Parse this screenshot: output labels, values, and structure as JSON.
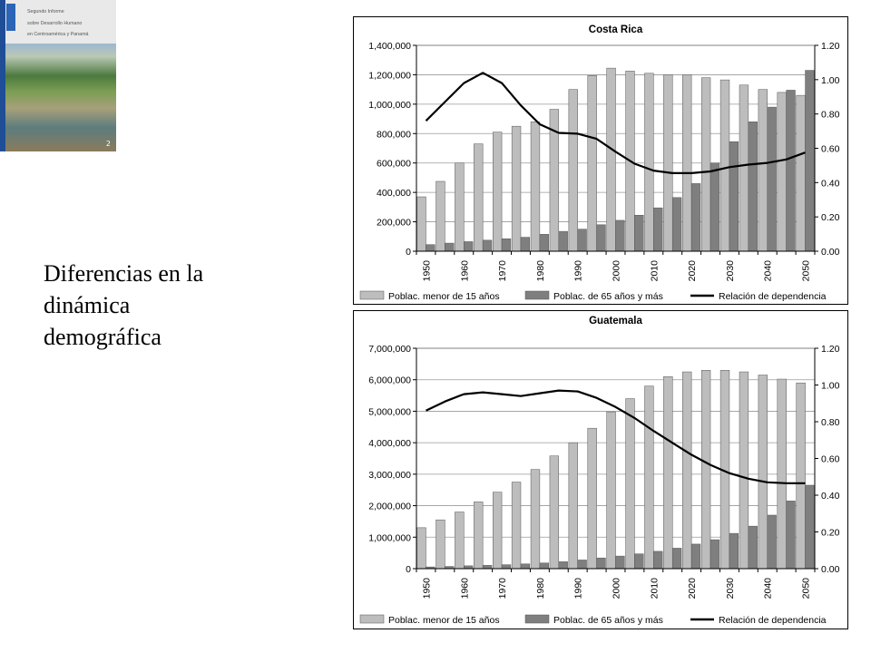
{
  "slide": {
    "cover": {
      "title_lines": [
        "Segundo Informe",
        "sobre Desarrollo Humano",
        "en Centroamérica y Panamá"
      ],
      "page_number": "2"
    },
    "caption": [
      "Diferencias en la",
      "dinámica",
      "demográfica"
    ]
  },
  "chart_data": [
    {
      "type": "bar",
      "title": "Costa Rica",
      "x": [
        1950,
        1955,
        1960,
        1965,
        1970,
        1975,
        1980,
        1985,
        1990,
        1995,
        2000,
        2005,
        2010,
        2015,
        2020,
        2025,
        2030,
        2035,
        2040,
        2045,
        2050
      ],
      "x_tick_labels": [
        "1950",
        "1960",
        "1970",
        "1980",
        "1990",
        "2000",
        "2010",
        "2020",
        "2030",
        "2040",
        "2050"
      ],
      "y_left": {
        "min": 0,
        "max": 1400000,
        "step": 200000,
        "tick_labels": [
          "0",
          "200,000",
          "400,000",
          "600,000",
          "800,000",
          "1,000,000",
          "1,200,000",
          "1,400,000"
        ]
      },
      "y_right": {
        "min": 0,
        "max": 1.2,
        "step": 0.2,
        "tick_labels": [
          "0.00",
          "0.20",
          "0.40",
          "0.60",
          "0.80",
          "1.00",
          "1.20"
        ]
      },
      "grid": true,
      "legend_position": "bottom",
      "series": [
        {
          "name": "Poblac. menor de 15 años",
          "kind": "bar",
          "axis": "left",
          "color": "#bdbdbd",
          "values": [
            370000,
            475000,
            600000,
            730000,
            810000,
            850000,
            880000,
            965000,
            1100000,
            1195000,
            1245000,
            1225000,
            1210000,
            1200000,
            1200000,
            1180000,
            1165000,
            1130000,
            1100000,
            1080000,
            1060000
          ]
        },
        {
          "name": "Poblac. de 65 años y más",
          "kind": "bar",
          "axis": "left",
          "color": "#7f7f7f",
          "values": [
            45000,
            55000,
            65000,
            75000,
            85000,
            95000,
            115000,
            135000,
            150000,
            180000,
            210000,
            245000,
            295000,
            365000,
            460000,
            600000,
            745000,
            880000,
            980000,
            1095000,
            1230000
          ]
        },
        {
          "name": "Relación de dependencia",
          "kind": "line",
          "axis": "right",
          "color": "#000000",
          "values": [
            0.76,
            0.87,
            0.98,
            1.04,
            0.98,
            0.85,
            0.74,
            0.69,
            0.685,
            0.655,
            0.58,
            0.51,
            0.47,
            0.455,
            0.455,
            0.465,
            0.49,
            0.505,
            0.515,
            0.535,
            0.575
          ]
        }
      ]
    },
    {
      "type": "bar",
      "title": "Guatemala",
      "x": [
        1950,
        1955,
        1960,
        1965,
        1970,
        1975,
        1980,
        1985,
        1990,
        1995,
        2000,
        2005,
        2010,
        2015,
        2020,
        2025,
        2030,
        2035,
        2040,
        2045,
        2050
      ],
      "x_tick_labels": [
        "1950",
        "1960",
        "1970",
        "1980",
        "1990",
        "2000",
        "2010",
        "2020",
        "2030",
        "2040",
        "2050"
      ],
      "y_left": {
        "min": 0,
        "max": 7000000,
        "step": 1000000,
        "tick_labels": [
          "0",
          "1,000,000",
          "2,000,000",
          "3,000,000",
          "4,000,000",
          "5,000,000",
          "6,000,000",
          "7,000,000"
        ]
      },
      "y_right": {
        "min": 0,
        "max": 1.2,
        "step": 0.2,
        "tick_labels": [
          "0.00",
          "0.20",
          "0.40",
          "0.60",
          "0.80",
          "1.00",
          "1.20"
        ]
      },
      "grid": true,
      "legend_position": "bottom",
      "series": [
        {
          "name": "Poblac. menor de 15 años",
          "kind": "bar",
          "axis": "left",
          "color": "#bdbdbd",
          "values": [
            1300000,
            1550000,
            1800000,
            2120000,
            2430000,
            2750000,
            3150000,
            3580000,
            4000000,
            4460000,
            4980000,
            5400000,
            5800000,
            6100000,
            6250000,
            6300000,
            6300000,
            6250000,
            6150000,
            6020000,
            5900000
          ]
        },
        {
          "name": "Poblac. de 65 años y más",
          "kind": "bar",
          "axis": "left",
          "color": "#7f7f7f",
          "values": [
            55000,
            70000,
            90000,
            105000,
            125000,
            150000,
            180000,
            220000,
            275000,
            340000,
            400000,
            470000,
            550000,
            650000,
            780000,
            920000,
            1120000,
            1350000,
            1700000,
            2150000,
            2650000
          ]
        },
        {
          "name": "Relación de dependencia",
          "kind": "line",
          "axis": "right",
          "color": "#000000",
          "values": [
            0.86,
            0.91,
            0.95,
            0.96,
            0.95,
            0.94,
            0.955,
            0.97,
            0.965,
            0.93,
            0.88,
            0.82,
            0.75,
            0.685,
            0.62,
            0.565,
            0.52,
            0.49,
            0.47,
            0.465,
            0.465
          ]
        }
      ]
    }
  ]
}
